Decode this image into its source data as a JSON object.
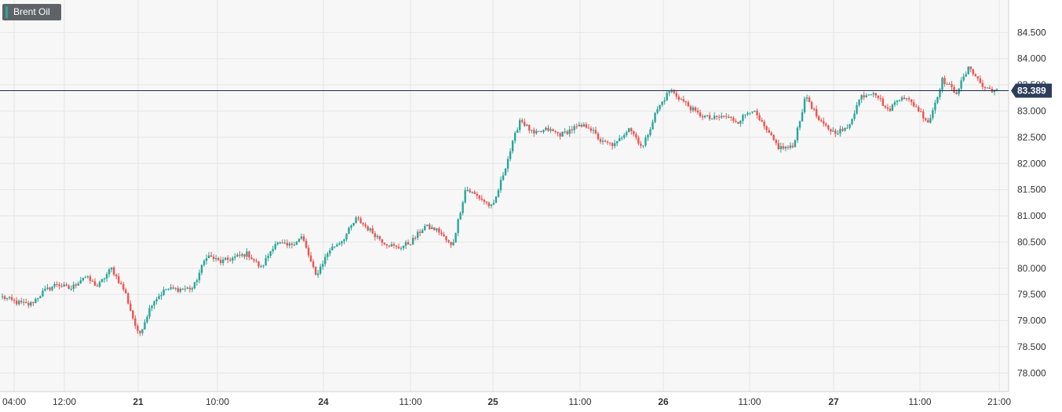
{
  "instrument": {
    "label": "Brent Oil"
  },
  "colors": {
    "up": "#26a69a",
    "down": "#ef5350",
    "price_line": "#1b2a4a",
    "badge_bg": "#2c3e5c",
    "grid": "#e6e6e6",
    "plot_bg": "#f7f7f7"
  },
  "chart_data": {
    "type": "candlestick",
    "title": "Brent Oil",
    "ylim": [
      77.75,
      84.85
    ],
    "y_ticks": [
      "84.500",
      "84.000",
      "83.500",
      "83.000",
      "82.500",
      "82.000",
      "81.500",
      "81.000",
      "80.500",
      "80.000",
      "79.500",
      "79.000",
      "78.500",
      "78.000"
    ],
    "x_ticks": [
      {
        "label": "04:00",
        "bold": false
      },
      {
        "label": "12:00",
        "bold": false
      },
      {
        "label": "21",
        "bold": true
      },
      {
        "label": "10:00",
        "bold": false
      },
      {
        "label": "24",
        "bold": true
      },
      {
        "label": "11:00",
        "bold": false
      },
      {
        "label": "25",
        "bold": true
      },
      {
        "label": "11:00",
        "bold": false
      },
      {
        "label": "26",
        "bold": true
      },
      {
        "label": "11:00",
        "bold": false
      },
      {
        "label": "27",
        "bold": true
      },
      {
        "label": "11:00",
        "bold": false
      },
      {
        "label": "21:00",
        "bold": false
      }
    ],
    "current_price": "83.389",
    "price_path": [
      79.45,
      79.35,
      79.3,
      79.55,
      79.7,
      79.6,
      79.85,
      79.65,
      80.0,
      79.55,
      78.7,
      79.35,
      79.6,
      79.6,
      79.62,
      80.25,
      80.12,
      80.2,
      80.28,
      80.0,
      80.48,
      80.42,
      80.6,
      79.85,
      80.35,
      80.55,
      80.95,
      80.72,
      80.5,
      80.38,
      80.5,
      80.8,
      80.72,
      80.4,
      81.52,
      81.35,
      81.15,
      82.0,
      82.85,
      82.55,
      82.65,
      82.55,
      82.68,
      82.72,
      82.4,
      82.35,
      82.7,
      82.3,
      83.0,
      83.4,
      83.18,
      82.95,
      82.85,
      82.9,
      82.8,
      83.05,
      82.65,
      82.3,
      82.3,
      83.3,
      82.78,
      82.6,
      82.65,
      83.28,
      83.38,
      83.0,
      83.3,
      83.1,
      82.78,
      83.6,
      83.35,
      83.85,
      83.45,
      83.389
    ],
    "price_line": 83.389,
    "grid": true
  }
}
